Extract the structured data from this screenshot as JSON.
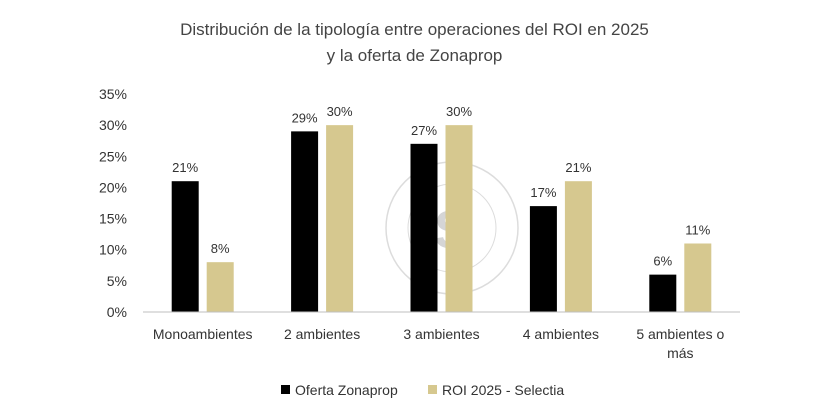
{
  "chart_data": {
    "type": "bar",
    "title": "Distribución de la tipología entre operaciones del ROI en 2025",
    "subtitle": "y la oferta de Zonaprop",
    "categories": [
      "Monoambientes",
      "2 ambientes",
      "3 ambientes",
      "4 ambientes",
      "5 ambientes o más"
    ],
    "category_display": [
      [
        "Monoambientes"
      ],
      [
        "2 ambientes"
      ],
      [
        "3 ambientes"
      ],
      [
        "4 ambientes"
      ],
      [
        "5 ambientes o",
        "más"
      ]
    ],
    "series": [
      {
        "name": "Oferta Zonaprop",
        "values": [
          21,
          29,
          27,
          17,
          6
        ],
        "labels": [
          "21%",
          "29%",
          "27%",
          "17%",
          "6%"
        ],
        "color": "#000000"
      },
      {
        "name": "ROI 2025 - Selectia",
        "values": [
          8,
          30,
          30,
          21,
          11
        ],
        "labels": [
          "8%",
          "30%",
          "30%",
          "21%",
          "11%"
        ],
        "color": "#d6c88f"
      }
    ],
    "ylim": [
      0,
      35
    ],
    "yticks": [
      0,
      5,
      10,
      15,
      20,
      25,
      30,
      35
    ],
    "ytick_labels": [
      "0%",
      "5%",
      "10%",
      "15%",
      "20%",
      "25%",
      "30%",
      "35%"
    ],
    "xlabel": "",
    "ylabel": "",
    "grid": false,
    "legend_position": "bottom"
  },
  "watermark": {
    "text_top": "SELECTIA",
    "text_bottom": "ALIANZA INMOBILIARIA",
    "logo_letter": "S"
  }
}
